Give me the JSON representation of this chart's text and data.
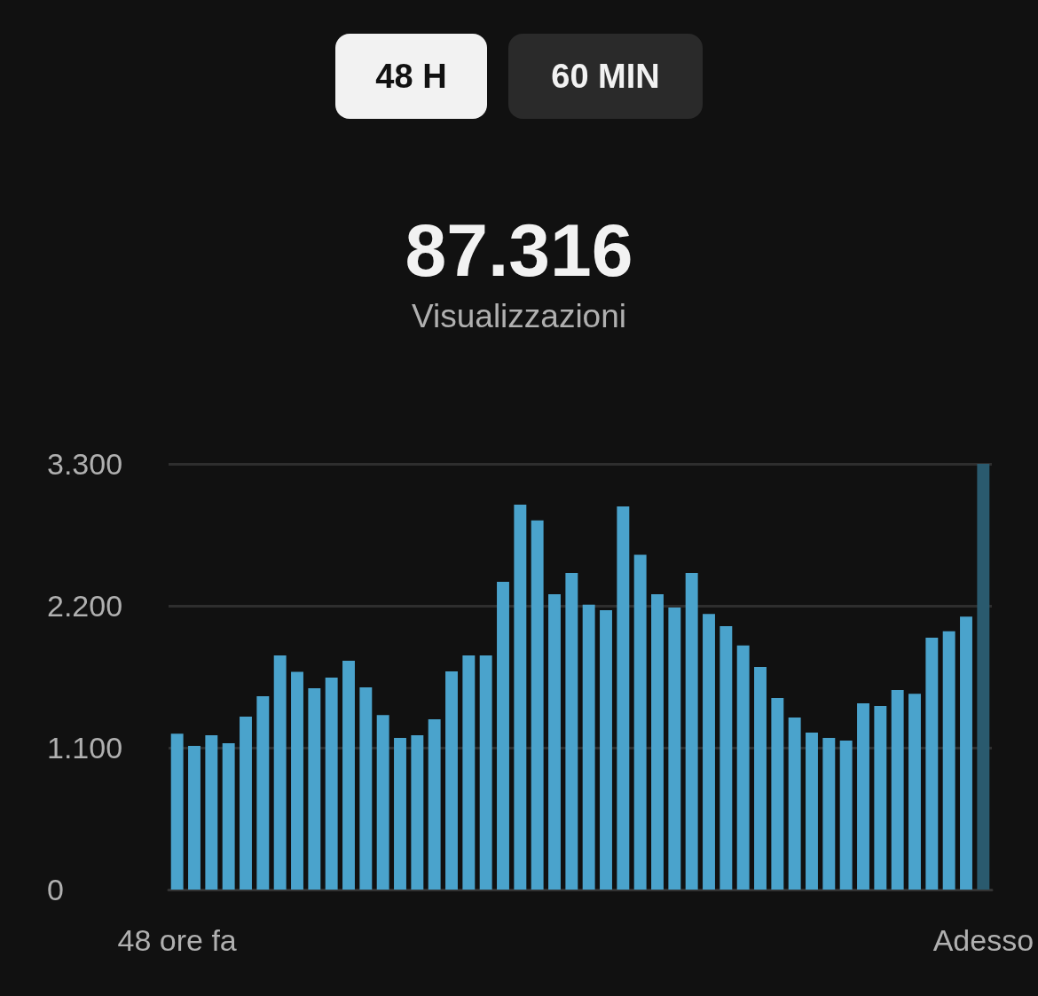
{
  "chart_data": {
    "type": "bar",
    "title": "87.316",
    "subtitle": "Visualizzazioni",
    "annotations": [
      "48 H",
      "60 MIN"
    ],
    "categories": [
      "48 ore fa",
      null,
      null,
      null,
      null,
      null,
      null,
      null,
      null,
      null,
      null,
      null,
      null,
      null,
      null,
      null,
      null,
      null,
      null,
      null,
      null,
      null,
      null,
      null,
      null,
      null,
      null,
      null,
      null,
      null,
      null,
      null,
      null,
      null,
      null,
      null,
      null,
      null,
      null,
      null,
      null,
      null,
      null,
      null,
      null,
      null,
      null,
      "Adesso"
    ],
    "values": [
      1208,
      1114,
      1196,
      1134,
      1341,
      1499,
      1815,
      1687,
      1561,
      1643,
      1774,
      1568,
      1352,
      1176,
      1196,
      1320,
      1691,
      1815,
      1815,
      2386,
      2984,
      2862,
      2289,
      2454,
      2209,
      2166,
      2970,
      2596,
      2289,
      2186,
      2454,
      2136,
      2042,
      1893,
      1726,
      1485,
      1334,
      1217,
      1176,
      1155,
      1444,
      1423,
      1547,
      1517,
      1953,
      2003,
      2115,
      3300
    ],
    "colors": [
      "#4aa3cc",
      "#4aa3cc",
      "#4aa3cc",
      "#4aa3cc",
      "#4aa3cc",
      "#4aa3cc",
      "#4aa3cc",
      "#4aa3cc",
      "#4aa3cc",
      "#4aa3cc",
      "#4aa3cc",
      "#4aa3cc",
      "#4aa3cc",
      "#4aa3cc",
      "#4aa3cc",
      "#4aa3cc",
      "#4aa3cc",
      "#4aa3cc",
      "#4aa3cc",
      "#4aa3cc",
      "#4aa3cc",
      "#4aa3cc",
      "#4aa3cc",
      "#4aa3cc",
      "#4aa3cc",
      "#4aa3cc",
      "#4aa3cc",
      "#4aa3cc",
      "#4aa3cc",
      "#4aa3cc",
      "#4aa3cc",
      "#4aa3cc",
      "#4aa3cc",
      "#4aa3cc",
      "#4aa3cc",
      "#4aa3cc",
      "#4aa3cc",
      "#4aa3cc",
      "#4aa3cc",
      "#4aa3cc",
      "#4aa3cc",
      "#4aa3cc",
      "#4aa3cc",
      "#4aa3cc",
      "#4aa3cc",
      "#4aa3cc",
      "#4aa3cc",
      "#2a5a6e"
    ],
    "ylim": [
      0,
      3300
    ],
    "yticks": [
      {
        "value": 0,
        "label": "0"
      },
      {
        "value": 1100,
        "label": "1.100"
      },
      {
        "value": 2200,
        "label": "2.200"
      },
      {
        "value": 3300,
        "label": "3.300"
      }
    ],
    "grid": "y"
  }
}
